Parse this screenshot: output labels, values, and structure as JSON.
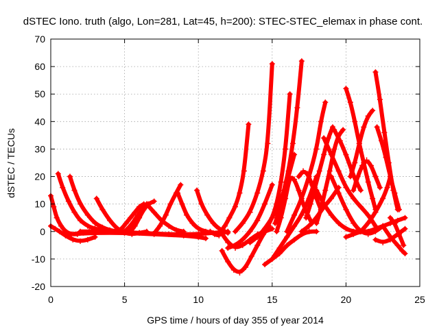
{
  "chart_data": {
    "type": "scatter",
    "title": "dSTEC Iono. truth (algo, Lon=281, Lat=45, h=200): STEC-STEC_elemax in phase cont.",
    "xlabel": "GPS time / hours of day 355 of year 2014",
    "ylabel": "dSTEC  / TECUs",
    "xlim": [
      0,
      25
    ],
    "ylim": [
      -20,
      70
    ],
    "xticks": [
      0,
      5,
      10,
      15,
      20,
      25
    ],
    "yticks": [
      -20,
      -10,
      0,
      10,
      20,
      30,
      40,
      50,
      60,
      70
    ],
    "grid": true,
    "color": "#ff0000",
    "marker": "plus",
    "series": [
      {
        "x": [
          0.0,
          0.2,
          0.4,
          0.7,
          1.0,
          1.4,
          1.8,
          2.2,
          2.6
        ],
        "y": [
          13,
          9,
          5,
          2,
          0,
          -1,
          -1,
          -0.5,
          0
        ]
      },
      {
        "x": [
          0.0,
          0.3,
          0.6,
          1.0,
          1.5,
          2.0,
          2.5,
          3.0
        ],
        "y": [
          2,
          1,
          0,
          -1.5,
          -3,
          -3.5,
          -3,
          -2
        ]
      },
      {
        "x": [
          0.5,
          0.8,
          1.2,
          1.6,
          2.0,
          2.5,
          3.0,
          3.5,
          4.0
        ],
        "y": [
          21,
          16,
          11,
          7,
          4,
          2,
          1,
          0.5,
          0
        ]
      },
      {
        "x": [
          1.3,
          1.6,
          2.0,
          2.5,
          3.0,
          3.5,
          4.0,
          4.5,
          5.0
        ],
        "y": [
          20,
          15,
          10,
          6,
          3,
          1.5,
          0.5,
          0,
          0
        ]
      },
      {
        "x": [
          3.1,
          3.5,
          4.0,
          4.5,
          5.0,
          5.5,
          6.0,
          6.5
        ],
        "y": [
          12,
          8,
          4,
          1,
          -0.5,
          -1,
          -0.5,
          0
        ]
      },
      {
        "x": [
          4.5,
          4.8,
          5.1,
          5.4,
          5.7,
          6.0,
          6.3
        ],
        "y": [
          0,
          1,
          3,
          5,
          7,
          9,
          10
        ]
      },
      {
        "x": [
          5.0,
          5.3,
          5.6,
          5.9,
          6.2,
          6.5
        ],
        "y": [
          0,
          1.5,
          3.5,
          6,
          8,
          10
        ]
      },
      {
        "x": [
          5.4,
          5.7,
          6.0,
          6.3,
          6.6,
          7.0
        ],
        "y": [
          0,
          2,
          5,
          8,
          10,
          11
        ]
      },
      {
        "x": [
          6.5,
          7.0,
          7.5,
          8.0,
          8.5,
          9.0
        ],
        "y": [
          10,
          7,
          4,
          2,
          0.5,
          0
        ]
      },
      {
        "x": [
          7.1,
          7.4,
          7.8,
          8.1,
          8.5,
          8.8
        ],
        "y": [
          0,
          2,
          6,
          10,
          14,
          17
        ]
      },
      {
        "x": [
          8.6,
          8.9,
          9.2,
          9.6,
          10.0,
          10.5,
          11.0
        ],
        "y": [
          14,
          10,
          6,
          3,
          1,
          0,
          -0.5
        ]
      },
      {
        "x": [
          9.9,
          10.2,
          10.6,
          11.0,
          11.4,
          11.8
        ],
        "y": [
          15,
          10,
          6,
          3,
          1,
          0
        ]
      },
      {
        "x": [
          10.8,
          11.1,
          11.4,
          11.7,
          12.0
        ],
        "y": [
          0,
          -1,
          -1.5,
          0,
          -0.5
        ]
      },
      {
        "x": [
          1.0,
          3.0,
          5.0,
          7.0,
          9.0,
          10.0,
          10.5
        ],
        "y": [
          -1,
          -0.5,
          -0.5,
          -1,
          -1.5,
          -2,
          -2.5
        ]
      },
      {
        "x": [
          2.0,
          4.0,
          6.0,
          8.0,
          10.0,
          12.0
        ],
        "y": [
          0,
          0,
          -0.5,
          -1,
          -1,
          0
        ]
      },
      {
        "x": [
          11.5,
          12.0,
          12.5,
          13.0,
          13.5,
          14.0,
          14.5,
          15.0
        ],
        "y": [
          0,
          -4,
          -6,
          -5,
          -3,
          -1,
          0,
          1
        ]
      },
      {
        "x": [
          11.6,
          12.0,
          12.4,
          12.8,
          13.2,
          13.6,
          14.0,
          14.4,
          14.8
        ],
        "y": [
          -7,
          -11,
          -14,
          -15,
          -13,
          -9,
          -5,
          -1,
          2
        ]
      },
      {
        "x": [
          11.5,
          11.8,
          12.1,
          12.5,
          12.8,
          13.1,
          13.4
        ],
        "y": [
          0,
          2,
          5,
          9,
          14,
          22,
          39
        ]
      },
      {
        "x": [
          12.0,
          12.5,
          13.0,
          13.5,
          14.0,
          14.5,
          15.0
        ],
        "y": [
          -6,
          -5,
          -3,
          0,
          4,
          10,
          17
        ]
      },
      {
        "x": [
          12.5,
          13.0,
          13.5,
          14.0,
          14.4,
          14.7,
          15.0
        ],
        "y": [
          0,
          3,
          7,
          14,
          22,
          32,
          61
        ]
      },
      {
        "x": [
          14.5,
          15.0,
          15.5,
          16.0,
          16.5,
          17.0,
          17.5,
          18.0
        ],
        "y": [
          -12,
          -10,
          -8,
          -5,
          -3,
          -1,
          0,
          0
        ]
      },
      {
        "x": [
          13.5,
          14.0,
          14.5,
          15.0,
          15.5,
          16.0,
          16.5
        ],
        "y": [
          -4,
          -2,
          1,
          5,
          10,
          18,
          28
        ]
      },
      {
        "x": [
          14.0,
          14.5,
          15.0,
          15.3,
          15.6,
          15.9,
          16.2
        ],
        "y": [
          -2,
          0,
          5,
          10,
          18,
          30,
          50
        ]
      },
      {
        "x": [
          15.0,
          15.5,
          16.0,
          16.5,
          17.0,
          17.5,
          18.0
        ],
        "y": [
          -10,
          -6,
          -2,
          2,
          6,
          12,
          20
        ]
      },
      {
        "x": [
          15.2,
          15.5,
          15.8,
          16.1,
          16.4,
          16.7,
          17.0
        ],
        "y": [
          3,
          8,
          15,
          22,
          32,
          45,
          62
        ]
      },
      {
        "x": [
          15.3,
          15.6,
          15.9,
          16.2,
          16.5,
          16.8,
          17.1,
          17.4,
          17.7
        ],
        "y": [
          0,
          5,
          12,
          20,
          19,
          15,
          10,
          6,
          3
        ]
      },
      {
        "x": [
          16.0,
          16.5,
          17.0,
          17.5,
          18.0,
          18.3,
          18.6
        ],
        "y": [
          0,
          6,
          12,
          20,
          30,
          40,
          47
        ]
      },
      {
        "x": [
          16.8,
          17.1,
          17.4,
          17.7,
          18.0,
          18.3
        ],
        "y": [
          20,
          22,
          21,
          17,
          12,
          8
        ]
      },
      {
        "x": [
          17.3,
          17.6,
          17.9,
          18.2,
          18.5,
          18.8,
          19.1
        ],
        "y": [
          5,
          10,
          16,
          22,
          28,
          34,
          38
        ]
      },
      {
        "x": [
          18.0,
          18.3,
          18.6,
          18.9,
          19.2,
          19.5,
          19.8
        ],
        "y": [
          3,
          8,
          15,
          22,
          30,
          35,
          37
        ]
      },
      {
        "x": [
          18.5,
          19.0,
          19.5,
          20.0,
          20.5,
          21.0,
          21.5,
          22.0
        ],
        "y": [
          34,
          28,
          22,
          16,
          12,
          9,
          6,
          2
        ]
      },
      {
        "x": [
          19.2,
          19.6,
          20.0,
          20.4,
          20.7,
          21.0
        ],
        "y": [
          37,
          33,
          28,
          22,
          18,
          15
        ]
      },
      {
        "x": [
          18.0,
          18.5,
          19.0,
          19.5,
          20.0,
          20.5,
          21.0
        ],
        "y": [
          15,
          10,
          6,
          3,
          1,
          0,
          0
        ]
      },
      {
        "x": [
          19.0,
          19.5,
          20.0,
          20.5,
          21.0,
          21.5,
          22.0,
          22.5
        ],
        "y": [
          20,
          14,
          8,
          3,
          0,
          -1,
          0,
          2
        ]
      },
      {
        "x": [
          20.0,
          20.3,
          20.6,
          20.9,
          21.2,
          21.5,
          21.8,
          22.0
        ],
        "y": [
          52,
          47,
          40,
          32,
          25,
          18,
          12,
          8
        ]
      },
      {
        "x": [
          20.3,
          20.6,
          20.9,
          21.2,
          21.5,
          21.8
        ],
        "y": [
          20,
          25,
          32,
          38,
          42,
          44
        ]
      },
      {
        "x": [
          20.5,
          20.8,
          21.1,
          21.4,
          21.7,
          22.0,
          22.3
        ],
        "y": [
          15,
          20,
          24,
          26,
          24,
          20,
          16
        ]
      },
      {
        "x": [
          22.0,
          22.3,
          22.6,
          22.9,
          23.2,
          23.5
        ],
        "y": [
          58,
          48,
          36,
          25,
          15,
          8
        ]
      },
      {
        "x": [
          22.1,
          22.4,
          22.7,
          23.0,
          23.3,
          23.6
        ],
        "y": [
          38,
          33,
          27,
          20,
          14,
          8
        ]
      },
      {
        "x": [
          21.0,
          21.5,
          22.0,
          22.5,
          22.8,
          23.0
        ],
        "y": [
          0,
          3,
          7,
          12,
          16,
          20
        ]
      },
      {
        "x": [
          20.0,
          20.5,
          21.0,
          21.5,
          22.0,
          22.5,
          23.0,
          23.5,
          24.0
        ],
        "y": [
          -2,
          -1,
          0,
          0,
          1,
          2,
          3,
          4,
          5
        ]
      },
      {
        "x": [
          22.0,
          22.5,
          23.0,
          23.5,
          24.0
        ],
        "y": [
          -3,
          -4,
          -3,
          -1,
          1
        ]
      },
      {
        "x": [
          23.0,
          23.3,
          23.6,
          23.9
        ],
        "y": [
          5,
          3,
          -1,
          -5
        ]
      },
      {
        "x": [
          22.5,
          23.0,
          23.5,
          23.8,
          24.0
        ],
        "y": [
          2,
          -2,
          -5,
          -7,
          -8
        ]
      },
      {
        "x": [
          17.0,
          17.5,
          18.0,
          18.5,
          19.0,
          19.5
        ],
        "y": [
          0,
          2,
          5,
          9,
          12,
          16
        ]
      }
    ]
  }
}
